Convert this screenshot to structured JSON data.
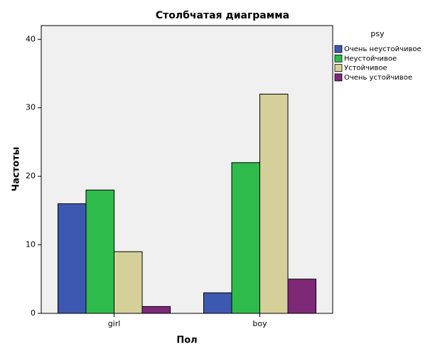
{
  "chart_data": {
    "type": "bar",
    "title": "Столбчатая диаграмма",
    "x_label": "Пол",
    "y_label": "Частоты",
    "categories": [
      "girl",
      "boy"
    ],
    "legend_title": "psy",
    "series": [
      {
        "name": "Очень неустойчивое",
        "color": "#3d58b0",
        "values": [
          16,
          3
        ]
      },
      {
        "name": "Неустойчивое",
        "color": "#2fbb4b",
        "values": [
          18,
          22
        ]
      },
      {
        "name": "Устойчивое",
        "color": "#d5d09a",
        "values": [
          9,
          32
        ]
      },
      {
        "name": "Очень устойчивое",
        "color": "#7e2878",
        "values": [
          1,
          5
        ]
      }
    ],
    "ylim": [
      0,
      42
    ],
    "yticks": [
      0,
      10,
      20,
      30,
      40
    ],
    "grid": false,
    "legend": "right"
  }
}
